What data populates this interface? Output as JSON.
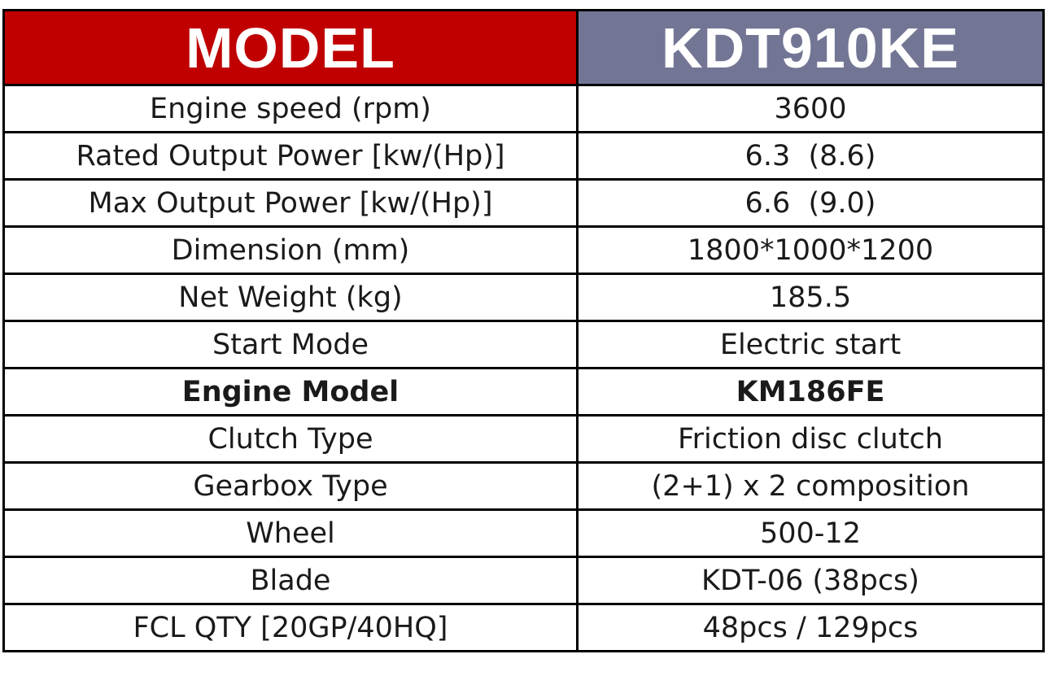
{
  "colors": {
    "model_label_bg": "#c00000",
    "model_value_bg": "#727694",
    "header_text": "#ffffff",
    "border": "#000000"
  },
  "header": {
    "label": "MODEL",
    "value": "KDT910KE"
  },
  "specs": [
    {
      "label": "Engine speed (rpm)",
      "value": "3600"
    },
    {
      "label": "Rated Output Power [kw/(Hp)]",
      "value": "6.3  (8.6)"
    },
    {
      "label": "Max Output Power [kw/(Hp)]",
      "value": "6.6  (9.0)"
    },
    {
      "label": "Dimension (mm)",
      "value": "1800*1000*1200"
    },
    {
      "label": "Net Weight (kg)",
      "value": "185.5"
    },
    {
      "label": "Start Mode",
      "value": "Electric start"
    },
    {
      "label": "Engine Model",
      "value": "KM186FE"
    },
    {
      "label": "Clutch Type",
      "value": "Friction disc clutch"
    },
    {
      "label": "Gearbox Type",
      "value": "(2+1) x 2 composition"
    },
    {
      "label": "Wheel",
      "value": "500-12"
    },
    {
      "label": "Blade",
      "value": "KDT-06 (38pcs)"
    },
    {
      "label": "FCL QTY [20GP/40HQ]",
      "value": "48pcs / 129pcs"
    }
  ]
}
